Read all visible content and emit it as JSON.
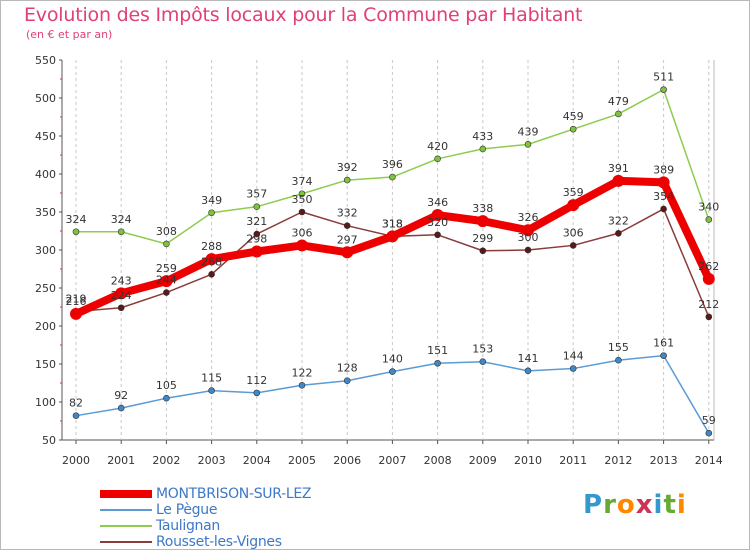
{
  "title": "Evolution des Impôts locaux pour la Commune par Habitant",
  "subtitle": "(en € et par an)",
  "logo": {
    "letters": [
      "P",
      "r",
      "o",
      "x",
      "i",
      "t",
      "i"
    ],
    "colors": [
      "#3399cc",
      "#66aa33",
      "#ff8800",
      "#cc3355",
      "#3399cc",
      "#66aa33",
      "#ff8800"
    ]
  },
  "chart_data": {
    "type": "line",
    "title": "Evolution des Impôts locaux pour la Commune par Habitant",
    "subtitle": "(en € et par an)",
    "x": [
      "2000",
      "2001",
      "2002",
      "2003",
      "2004",
      "2005",
      "2006",
      "2007",
      "2008",
      "2009",
      "2010",
      "2011",
      "2012",
      "2013",
      "2014"
    ],
    "yticks": [
      50,
      100,
      150,
      200,
      250,
      300,
      350,
      400,
      450,
      500,
      550
    ],
    "ylim": [
      50,
      550
    ],
    "grid": "vertical-dashed",
    "legend": "bottom-left",
    "series": [
      {
        "name": "Taulignan",
        "color": "#8dcc4d",
        "marker": "#7fc23e",
        "values": [
          324,
          324,
          308,
          349,
          357,
          374,
          392,
          396,
          420,
          433,
          439,
          459,
          479,
          511,
          340
        ],
        "labels": [
          "324",
          "324",
          "308",
          "349",
          "357",
          "374",
          "392",
          "396",
          "420",
          "433",
          "439",
          "459",
          "479",
          "511",
          "340"
        ]
      },
      {
        "name": "Rousset-les-Vignes",
        "color": "#8a3b3b",
        "marker": "#5a1818",
        "values": [
          219,
          224,
          244,
          268,
          321,
          350,
          332,
          318,
          320,
          299,
          300,
          306,
          322,
          354,
          212
        ],
        "labels": [
          "219",
          "224",
          "244",
          "268",
          "321",
          "350",
          "332",
          "318",
          "320",
          "299",
          "300",
          "306",
          "322",
          "354",
          "212"
        ]
      },
      {
        "name": "Le Pègue",
        "color": "#5b9bd5",
        "marker": "#3f88c5",
        "values": [
          82,
          92,
          105,
          115,
          112,
          122,
          128,
          140,
          151,
          153,
          141,
          144,
          155,
          161,
          59
        ],
        "labels": [
          "82",
          "92",
          "105",
          "115",
          "112",
          "122",
          "128",
          "140",
          "151",
          "153",
          "141",
          "144",
          "155",
          "161",
          "59"
        ]
      },
      {
        "name": "MONTBRISON-SUR-LEZ",
        "color": "#ee0000",
        "marker": "#ee0000",
        "values": [
          216,
          243,
          259,
          288,
          298,
          306,
          297,
          318,
          346,
          338,
          326,
          359,
          391,
          389,
          262
        ],
        "labels": [
          "216",
          "243",
          "259",
          "288",
          "298",
          "306",
          "297",
          "318",
          "346",
          "338",
          "326",
          "359",
          "391",
          "389",
          "262"
        ]
      }
    ]
  },
  "legend": [
    {
      "name": "MONTBRISON-SUR-LEZ",
      "color": "#ee0000",
      "text_color": "#3d78c8"
    },
    {
      "name": "Le Pègue",
      "color": "#5b9bd5",
      "text_color": "#3d78c8"
    },
    {
      "name": "Taulignan",
      "color": "#8dcc4d",
      "text_color": "#3d78c8"
    },
    {
      "name": "Rousset-les-Vignes",
      "color": "#8a3b3b",
      "text_color": "#3d78c8"
    }
  ]
}
